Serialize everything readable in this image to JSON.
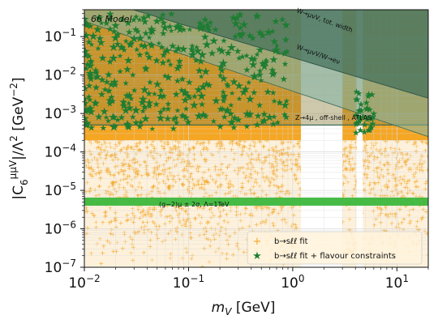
{
  "chart_data": {
    "type": "scatter",
    "xlabel": "m_V [GeV]",
    "ylabel": "|C_6^{μμV}|/Λ^2  [GeV^{-2}]",
    "xscale": "log",
    "yscale": "log",
    "xlim": [
      0.01,
      20
    ],
    "ylim": [
      1e-07,
      0.5
    ],
    "x_ticks": [
      {
        "value": 0.01,
        "base": "10",
        "exp": "−2"
      },
      {
        "value": 0.1,
        "base": "10",
        "exp": "−1"
      },
      {
        "value": 1,
        "base": "10",
        "exp": "0"
      },
      {
        "value": 10,
        "base": "10",
        "exp": "1"
      }
    ],
    "y_ticks": [
      {
        "value": 1e-07,
        "base": "10",
        "exp": "−7"
      },
      {
        "value": 1e-06,
        "base": "10",
        "exp": "−6"
      },
      {
        "value": 1e-05,
        "base": "10",
        "exp": "−5"
      },
      {
        "value": 0.0001,
        "base": "10",
        "exp": "−4"
      },
      {
        "value": 0.001,
        "base": "10",
        "exp": "−3"
      },
      {
        "value": 0.01,
        "base": "10",
        "exp": "−2"
      },
      {
        "value": 0.1,
        "base": "10",
        "exp": "−1"
      }
    ],
    "model_label": "66 Model",
    "legend": {
      "placement": "bottom-right",
      "entries": [
        {
          "label": "b→sℓℓ fit",
          "marker": "plus",
          "color": "#f5a623"
        },
        {
          "label": "b→sℓℓ fit + flavour constraints",
          "marker": "star",
          "color": "#1e7d32"
        }
      ]
    },
    "regions": [
      {
        "name": "W→μνV, tot. width",
        "label": "W→μνV, tot. width",
        "color": "#3f6e58",
        "boundary": [
          [
            0.01,
            1.2
          ],
          [
            20,
            0.0025
          ]
        ]
      },
      {
        "name": "W→μνV/W→eν",
        "label": "W→μνV/W→eν",
        "color": "#3f6e58",
        "boundary": [
          [
            0.01,
            0.25
          ],
          [
            20,
            0.00025
          ]
        ]
      },
      {
        "name": "Z→4μ, off-shell, ATLAS",
        "label": "Z→4μ , off-shell , ATLAS",
        "color": "#8b7d3a",
        "y": 0.0005
      },
      {
        "name": "(g−2)μ ± 2σ, Λ=1TeV",
        "label": "(g−2)μ ± 2σ, Λ=1TeV",
        "color": "#3cb73c",
        "y_range": [
          4e-06,
          6.5e-06
        ]
      }
    ],
    "excluded_mass_windows": [
      {
        "name": "J/ψ-ψ(2S) region veto",
        "x_range": [
          1.2,
          3.0
        ],
        "color": "#ffffff"
      },
      {
        "name": "near-resonance veto",
        "x_range": [
          4.1,
          4.7
        ],
        "color": "#ffffff"
      }
    ],
    "colors": {
      "fit_points": "#f5a623",
      "flavour_points": "#1e7d32",
      "upper_region": "#7fa89a",
      "band_g2": "#3cb73c"
    }
  }
}
